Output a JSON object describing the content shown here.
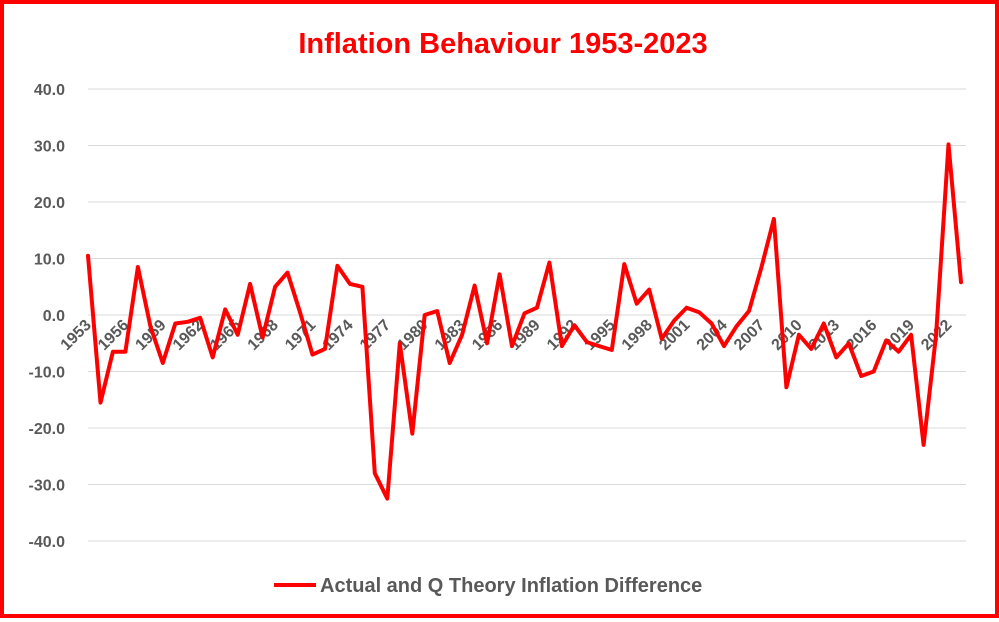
{
  "chart_data": {
    "type": "line",
    "title": "Inflation Behaviour 1953-2023",
    "xlabel": "",
    "ylabel": "",
    "ylim": [
      -40,
      40
    ],
    "y_ticks": [
      "40.0",
      "30.0",
      "20.0",
      "10.0",
      "0.0",
      "-10.0",
      "-20.0",
      "-30.0",
      "-40.0"
    ],
    "y_tick_values": [
      40,
      30,
      20,
      10,
      0,
      -10,
      -20,
      -30,
      -40
    ],
    "x_tick_labels": [
      "1953",
      "1956",
      "1959",
      "1962",
      "1965",
      "1968",
      "1971",
      "1974",
      "1977",
      "1980",
      "1983",
      "1986",
      "1989",
      "1992",
      "1995",
      "1998",
      "2001",
      "2004",
      "2007",
      "2010",
      "2013",
      "2016",
      "2019",
      "2022"
    ],
    "grid": true,
    "legend_position": "bottom",
    "colors": {
      "line": "#ff0000",
      "frame": "#ff0000",
      "title": "#ff0000",
      "grid": "#d9d9d9",
      "text": "#595959"
    },
    "x": [
      1953,
      1954,
      1955,
      1956,
      1957,
      1958,
      1959,
      1960,
      1961,
      1962,
      1963,
      1964,
      1965,
      1966,
      1967,
      1968,
      1969,
      1970,
      1971,
      1972,
      1973,
      1974,
      1975,
      1976,
      1977,
      1978,
      1979,
      1980,
      1981,
      1982,
      1983,
      1984,
      1985,
      1986,
      1987,
      1988,
      1989,
      1990,
      1991,
      1992,
      1993,
      1994,
      1995,
      1996,
      1997,
      1998,
      1999,
      2000,
      2001,
      2002,
      2003,
      2004,
      2005,
      2006,
      2007,
      2008,
      2009,
      2010,
      2011,
      2012,
      2013,
      2014,
      2015,
      2016,
      2017,
      2018,
      2019,
      2020,
      2021,
      2022,
      2023
    ],
    "series": [
      {
        "name": "Actual and Q Theory Inflation Difference",
        "values": [
          10.5,
          -15.5,
          -6.5,
          -6.5,
          8.5,
          -2.0,
          -8.5,
          -1.5,
          -1.2,
          -0.5,
          -7.5,
          1.0,
          -3.5,
          5.5,
          -4.0,
          5.0,
          7.5,
          0.5,
          -7.0,
          -6.0,
          8.7,
          5.5,
          5.0,
          -28.0,
          -32.5,
          -5.0,
          -21.0,
          0.0,
          0.7,
          -8.5,
          -3.5,
          5.2,
          -5.0,
          7.2,
          -5.5,
          0.3,
          1.3,
          9.3,
          -5.5,
          -1.8,
          -4.8,
          -5.5,
          -6.2,
          9.0,
          2.0,
          4.5,
          -4.2,
          -1.0,
          1.3,
          0.5,
          -1.5,
          -5.5,
          -2.0,
          0.7,
          8.5,
          17.0,
          -12.8,
          -3.5,
          -6.0,
          -1.5,
          -7.5,
          -5.0,
          -10.8,
          -10.0,
          -4.5,
          -6.5,
          -3.5,
          -23.0,
          -3.5,
          30.2,
          5.8
        ]
      }
    ]
  }
}
